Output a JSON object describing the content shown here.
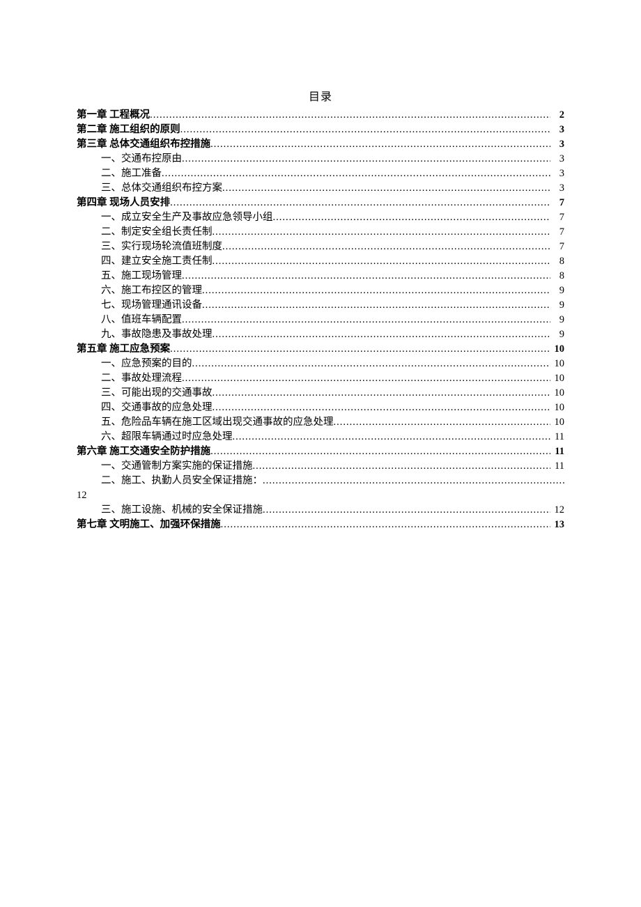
{
  "title": "目录",
  "entries": [
    {
      "type": "chapter",
      "text": "第一章 工程概况",
      "page": "2"
    },
    {
      "type": "chapter",
      "text": "第二章 施工组织的原则",
      "page": "3"
    },
    {
      "type": "chapter",
      "text": "第三章 总体交通组织布控措施",
      "page": "3"
    },
    {
      "type": "sub",
      "text": "一、交通布控原由",
      "page": "3"
    },
    {
      "type": "sub",
      "text": "二、施工准备 ",
      "page": "3"
    },
    {
      "type": "sub",
      "text": "三、总体交通组织布控方案 ",
      "page": "3"
    },
    {
      "type": "chapter",
      "text": "第四章 现场人员安排",
      "page": "7"
    },
    {
      "type": "sub",
      "text": "一、成立安全生产及事故应急领导小组",
      "page": "7"
    },
    {
      "type": "sub",
      "text": "二、制定安全组长责任制",
      "page": "7"
    },
    {
      "type": "sub",
      "text": "三、实行现场轮流值班制度",
      "page": "7"
    },
    {
      "type": "sub",
      "text": "四、建立安全施工责任制 ",
      "page": "8"
    },
    {
      "type": "sub",
      "text": "五、施工现场管理",
      "page": "8"
    },
    {
      "type": "sub",
      "text": "六、施工布控区的管理",
      "page": "9"
    },
    {
      "type": "sub",
      "text": "七、现场管理通讯设备",
      "page": "9"
    },
    {
      "type": "sub",
      "text": "八、值班车辆配置",
      "page": "9"
    },
    {
      "type": "sub",
      "text": "九、事故隐患及事故处理 ",
      "page": "9"
    },
    {
      "type": "chapter",
      "text": "第五章 施工应急预案",
      "page": "10"
    },
    {
      "type": "sub",
      "text": "一、应急预案的目的",
      "page": "10"
    },
    {
      "type": "sub",
      "text": "二、事故处理流程",
      "page": "10"
    },
    {
      "type": "sub",
      "text": "三、可能出现的交通事故",
      "page": "10"
    },
    {
      "type": "sub",
      "text": "四、交通事故的应急处理",
      "page": "10"
    },
    {
      "type": "sub",
      "text": "五、危险品车辆在施工区域出现交通事故的应急处理",
      "page": "10"
    },
    {
      "type": "sub",
      "text": "六、超限车辆通过时应急处理",
      "page": "11"
    },
    {
      "type": "chapter",
      "text": "第六章 施工交通安全防护措施",
      "page": "11"
    },
    {
      "type": "sub",
      "text": "一、交通管制方案实施的保证措施",
      "page": "11"
    },
    {
      "type": "sub-wrap",
      "text": "二、施工、执勤人员安全保证措施： ",
      "page": "12"
    },
    {
      "type": "sub",
      "text": "三、施工设施、机械的安全保证措施",
      "page": "12"
    },
    {
      "type": "chapter",
      "text": "第七章 文明施工、加强环保措施",
      "page": "13"
    }
  ]
}
